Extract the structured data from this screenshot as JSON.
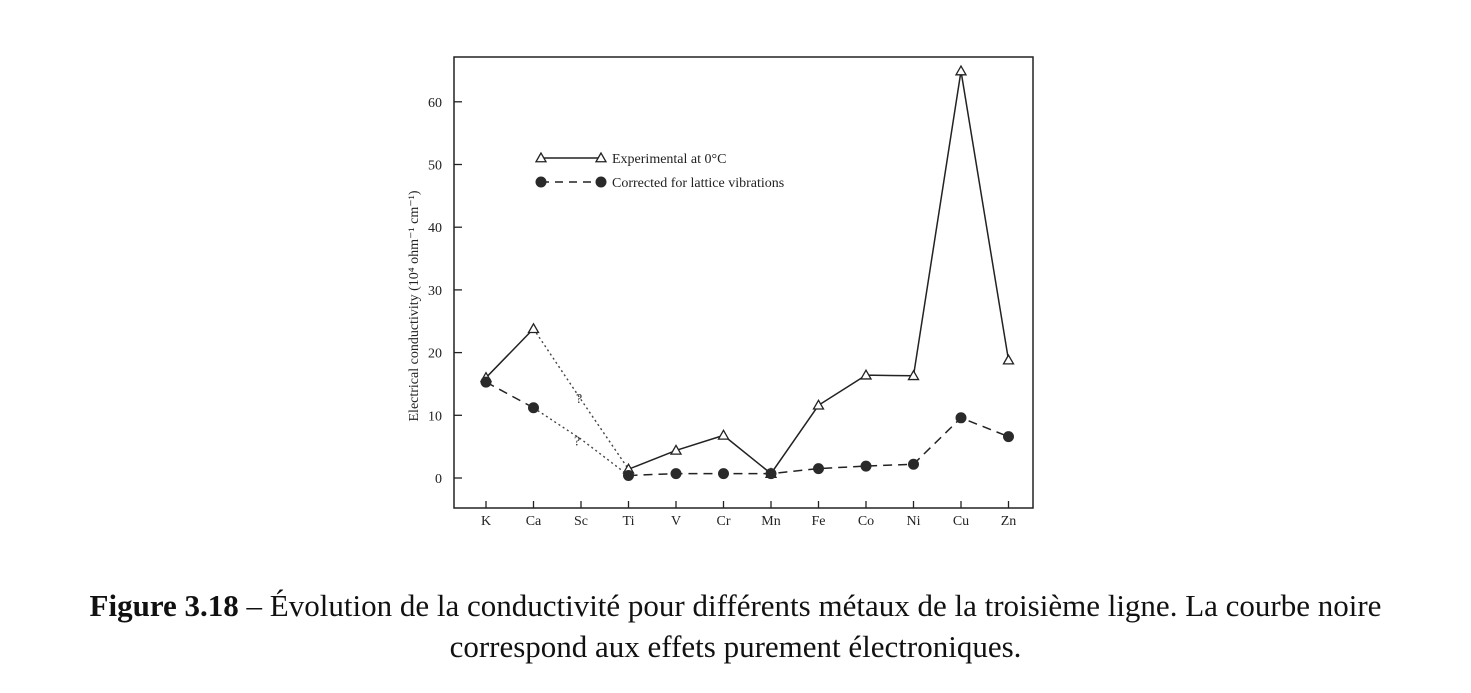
{
  "chart_data": {
    "type": "line",
    "categories": [
      "K",
      "Ca",
      "Sc",
      "Ti",
      "V",
      "Cr",
      "Mn",
      "Fe",
      "Co",
      "Ni",
      "Cu",
      "Zn"
    ],
    "ylabel": "Electrical conductivity (10⁴ ohm⁻¹ cm⁻¹)",
    "xlabel": "",
    "yticks": [
      0,
      10,
      20,
      30,
      40,
      50,
      60
    ],
    "ylim": [
      -5,
      67
    ],
    "grid": false,
    "legend_position": "upper-left",
    "series": [
      {
        "name": "Experimental at 0°C",
        "style": "solid",
        "marker": "triangle-open",
        "values": [
          16,
          23.8,
          null,
          1.4,
          4.4,
          6.8,
          0.7,
          11.6,
          16.4,
          16.3,
          64.9,
          18.8
        ],
        "dotted_gap_values": [
          23.8,
          12.5,
          1.4
        ]
      },
      {
        "name": "Corrected for lattice vibrations",
        "style": "dashed",
        "marker": "circle-filled",
        "values": [
          15.3,
          11.2,
          null,
          0.4,
          0.7,
          0.7,
          0.7,
          1.5,
          1.9,
          2.2,
          9.6,
          6.6
        ],
        "dotted_gap_values": [
          11.2,
          6.2,
          0.4
        ]
      }
    ],
    "annotations": [
      "?",
      "?"
    ]
  },
  "caption": {
    "label": "Figure 3.18",
    "text": " – Évolution de la conductivité pour différents métaux de la troisième ligne. La courbe noire correspond aux effets purement électroniques."
  }
}
